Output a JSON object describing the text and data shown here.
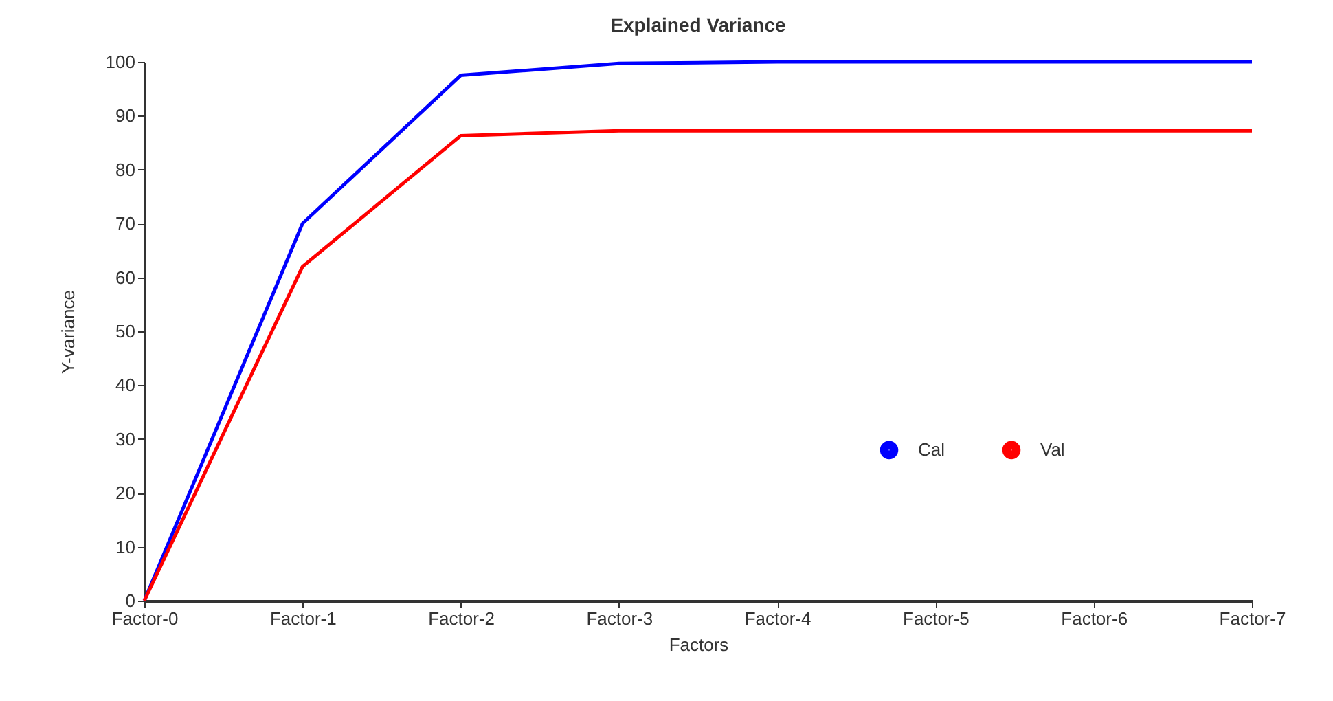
{
  "chart_data": {
    "type": "line",
    "title": "Explained Variance",
    "xlabel": "Factors",
    "ylabel": "Y-variance",
    "categories": [
      "Factor-0",
      "Factor-1",
      "Factor-2",
      "Factor-3",
      "Factor-4",
      "Factor-5",
      "Factor-6",
      "Factor-7"
    ],
    "series": [
      {
        "name": "Cal",
        "color": "#0000ff",
        "values": [
          0,
          70,
          97.5,
          99.7,
          100,
          100,
          100,
          100
        ]
      },
      {
        "name": "Val",
        "color": "#ff0000",
        "values": [
          0,
          62,
          86.3,
          87.2,
          87.2,
          87.2,
          87.2,
          87.2
        ]
      }
    ],
    "ylim": [
      0,
      100
    ],
    "yticks": [
      0,
      10,
      20,
      30,
      40,
      50,
      60,
      70,
      80,
      90,
      100
    ],
    "grid": false,
    "legend": "right"
  }
}
